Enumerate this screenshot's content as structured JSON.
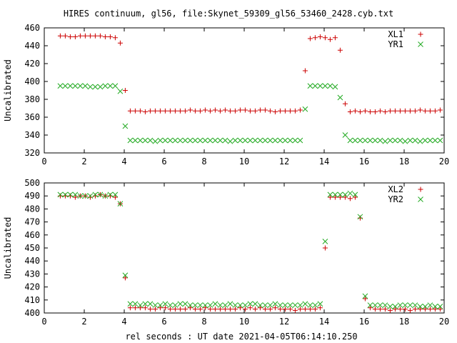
{
  "title": "HIRES continuum, gl56, file:Skynet_59309_gl56_53460_2428.cyb.txt",
  "xlabel": "rel seconds : UT date 2021-04-05T06:14:10.250",
  "colors": {
    "plus_series": "#cc0000",
    "x_series": "#22aa22",
    "axes": "#000000"
  },
  "chart_data": [
    {
      "type": "scatter",
      "ylabel": "Uncalibrated",
      "xlim": [
        0,
        20
      ],
      "ylim": [
        320,
        460
      ],
      "xticks": [
        "0",
        "2",
        "4",
        "6",
        "8",
        "10",
        "12",
        "14",
        "16",
        "18",
        "20"
      ],
      "yticks": [
        "320",
        "340",
        "360",
        "380",
        "400",
        "420",
        "440",
        "460"
      ],
      "xtick_values": [
        0,
        2,
        4,
        6,
        8,
        10,
        12,
        14,
        16,
        18,
        20
      ],
      "ytick_values": [
        320,
        340,
        360,
        380,
        400,
        420,
        440,
        460
      ],
      "legend_position": "top-right",
      "series": [
        {
          "name": "XL1",
          "marker": "plus",
          "x": [
            0.8,
            1.05,
            1.3,
            1.55,
            1.8,
            2.05,
            2.3,
            2.55,
            2.8,
            3.05,
            3.3,
            3.55,
            3.8,
            4.05,
            4.3,
            4.55,
            4.8,
            5.05,
            5.3,
            5.55,
            5.8,
            6.05,
            6.3,
            6.55,
            6.8,
            7.05,
            7.3,
            7.55,
            7.8,
            8.05,
            8.3,
            8.55,
            8.8,
            9.05,
            9.3,
            9.55,
            9.8,
            10.05,
            10.3,
            10.55,
            10.8,
            11.05,
            11.3,
            11.55,
            11.8,
            12.05,
            12.3,
            12.55,
            12.8,
            13.05,
            13.3,
            13.55,
            13.8,
            14.05,
            14.3,
            14.55,
            14.8,
            15.05,
            15.3,
            15.55,
            15.8,
            16.05,
            16.3,
            16.55,
            16.8,
            17.05,
            17.3,
            17.55,
            17.8,
            18.05,
            18.3,
            18.55,
            18.8,
            19.05,
            19.3,
            19.55,
            19.8
          ],
          "y": [
            451,
            451,
            450,
            450,
            451,
            451,
            451,
            451,
            451,
            450,
            450,
            449,
            443,
            390,
            367,
            367,
            367,
            366,
            367,
            367,
            367,
            367,
            367,
            367,
            367,
            367,
            368,
            367,
            367,
            368,
            367,
            368,
            367,
            368,
            367,
            367,
            368,
            368,
            367,
            367,
            368,
            368,
            367,
            366,
            367,
            367,
            367,
            367,
            368,
            412,
            448,
            449,
            450,
            449,
            447,
            449,
            435,
            375,
            366,
            367,
            366,
            367,
            366,
            366,
            367,
            366,
            367,
            367,
            367,
            367,
            367,
            367,
            368,
            367,
            367,
            367,
            368
          ],
          "x_override_note": ""
        },
        {
          "name": "YR1",
          "marker": "x",
          "x": [
            0.8,
            1.05,
            1.3,
            1.55,
            1.8,
            2.05,
            2.3,
            2.55,
            2.8,
            3.05,
            3.3,
            3.55,
            3.8,
            4.05,
            4.3,
            4.55,
            4.8,
            5.05,
            5.3,
            5.55,
            5.8,
            6.05,
            6.3,
            6.55,
            6.8,
            7.05,
            7.3,
            7.55,
            7.8,
            8.05,
            8.3,
            8.55,
            8.8,
            9.05,
            9.3,
            9.55,
            9.8,
            10.05,
            10.3,
            10.55,
            10.8,
            11.05,
            11.3,
            11.55,
            11.8,
            12.05,
            12.3,
            12.55,
            12.8,
            13.05,
            13.3,
            13.55,
            13.8,
            14.05,
            14.3,
            14.55,
            14.8,
            15.05,
            15.3,
            15.55,
            15.8,
            16.05,
            16.3,
            16.55,
            16.8,
            17.05,
            17.3,
            17.55,
            17.8,
            18.05,
            18.3,
            18.55,
            18.8,
            19.05,
            19.3,
            19.55,
            19.8
          ],
          "y": [
            395,
            395,
            395,
            395,
            395,
            395,
            394,
            394,
            394,
            395,
            395,
            395,
            389,
            350,
            334,
            334,
            334,
            334,
            334,
            333,
            334,
            334,
            334,
            334,
            334,
            334,
            334,
            334,
            334,
            334,
            334,
            334,
            334,
            334,
            333,
            334,
            334,
            334,
            334,
            334,
            334,
            334,
            334,
            334,
            334,
            334,
            334,
            334,
            334,
            369,
            395,
            395,
            395,
            395,
            395,
            394,
            382,
            340,
            334,
            334,
            334,
            334,
            334,
            334,
            334,
            333,
            334,
            334,
            334,
            333,
            334,
            334,
            333,
            334,
            334,
            334,
            334
          ]
        }
      ]
    },
    {
      "type": "scatter",
      "ylabel": "Uncalibrated",
      "xlim": [
        0,
        20
      ],
      "ylim": [
        400,
        500
      ],
      "xticks": [
        "0",
        "2",
        "4",
        "6",
        "8",
        "10",
        "12",
        "14",
        "16",
        "18",
        "20"
      ],
      "yticks": [
        "400",
        "410",
        "420",
        "430",
        "440",
        "450",
        "460",
        "470",
        "480",
        "490",
        "500"
      ],
      "xtick_values": [
        0,
        2,
        4,
        6,
        8,
        10,
        12,
        14,
        16,
        18,
        20
      ],
      "ytick_values": [
        400,
        410,
        420,
        430,
        440,
        450,
        460,
        470,
        480,
        490,
        500
      ],
      "legend_position": "top-right",
      "series": [
        {
          "name": "XL2",
          "marker": "plus",
          "x": [
            0.8,
            1.05,
            1.3,
            1.55,
            1.8,
            2.05,
            2.3,
            2.55,
            2.8,
            3.05,
            3.3,
            3.55,
            3.8,
            4.05,
            4.3,
            4.55,
            4.8,
            5.05,
            5.3,
            5.55,
            5.8,
            6.05,
            6.3,
            6.55,
            6.8,
            7.05,
            7.3,
            7.55,
            7.8,
            8.05,
            8.3,
            8.55,
            8.8,
            9.05,
            9.3,
            9.55,
            9.8,
            10.05,
            10.3,
            10.55,
            10.8,
            11.05,
            11.3,
            11.55,
            11.8,
            12.05,
            12.3,
            12.55,
            12.8,
            13.05,
            13.3,
            13.55,
            13.8,
            14.05,
            14.3,
            14.55,
            14.8,
            15.05,
            15.3,
            15.55,
            15.8,
            16.05,
            16.3,
            16.55,
            16.8,
            17.05,
            17.3,
            17.55,
            17.8,
            18.05,
            18.3,
            18.55,
            18.8,
            19.05,
            19.3,
            19.55,
            19.8
          ],
          "y": [
            490,
            490,
            490,
            489,
            490,
            490,
            489,
            490,
            491,
            490,
            490,
            489,
            484,
            427,
            404,
            404,
            404,
            404,
            403,
            403,
            404,
            404,
            403,
            403,
            403,
            403,
            404,
            403,
            403,
            404,
            403,
            403,
            403,
            403,
            403,
            403,
            404,
            403,
            404,
            403,
            404,
            403,
            403,
            404,
            403,
            403,
            403,
            402,
            403,
            403,
            403,
            403,
            404,
            450,
            489,
            489,
            489,
            489,
            488,
            489,
            473,
            411,
            404,
            403,
            403,
            403,
            402,
            403,
            403,
            403,
            402,
            403,
            403,
            403,
            403,
            403,
            403
          ]
        },
        {
          "name": "YR2",
          "marker": "x",
          "x": [
            0.8,
            1.05,
            1.3,
            1.55,
            1.8,
            2.05,
            2.3,
            2.55,
            2.8,
            3.05,
            3.3,
            3.55,
            3.8,
            4.05,
            4.3,
            4.55,
            4.8,
            5.05,
            5.3,
            5.55,
            5.8,
            6.05,
            6.3,
            6.55,
            6.8,
            7.05,
            7.3,
            7.55,
            7.8,
            8.05,
            8.3,
            8.55,
            8.8,
            9.05,
            9.3,
            9.55,
            9.8,
            10.05,
            10.3,
            10.55,
            10.8,
            11.05,
            11.3,
            11.55,
            11.8,
            12.05,
            12.3,
            12.55,
            12.8,
            13.05,
            13.3,
            13.55,
            13.8,
            14.05,
            14.3,
            14.55,
            14.8,
            15.05,
            15.3,
            15.55,
            15.8,
            16.05,
            16.3,
            16.55,
            16.8,
            17.05,
            17.3,
            17.55,
            17.8,
            18.05,
            18.3,
            18.55,
            18.8,
            19.05,
            19.3,
            19.55,
            19.8
          ],
          "y": [
            491,
            491,
            491,
            491,
            490,
            490,
            490,
            491,
            491,
            490,
            491,
            491,
            484,
            429,
            407,
            407,
            406,
            407,
            407,
            406,
            406,
            407,
            406,
            406,
            407,
            407,
            406,
            406,
            406,
            406,
            406,
            407,
            406,
            406,
            407,
            406,
            406,
            406,
            407,
            407,
            406,
            406,
            406,
            407,
            406,
            406,
            406,
            406,
            406,
            407,
            406,
            406,
            407,
            455,
            491,
            491,
            491,
            491,
            492,
            491,
            474,
            413,
            406,
            406,
            406,
            406,
            405,
            405,
            406,
            406,
            406,
            406,
            405,
            405,
            406,
            405,
            405
          ]
        }
      ]
    }
  ]
}
